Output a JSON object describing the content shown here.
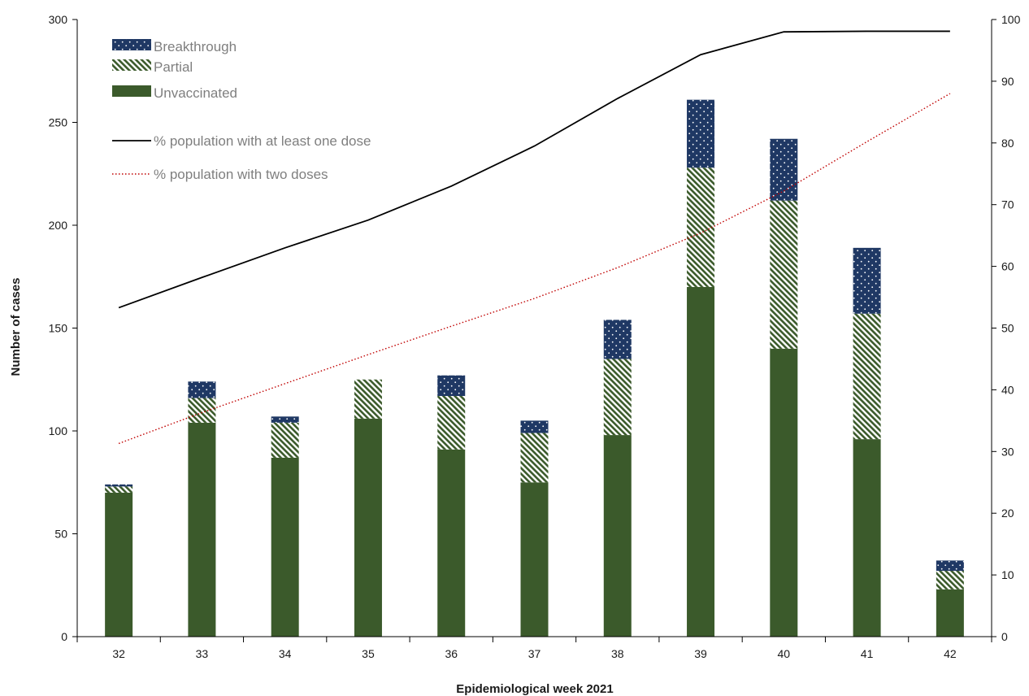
{
  "chart_data": {
    "type": "bar",
    "stacked": true,
    "categories": [
      "32",
      "33",
      "34",
      "35",
      "36",
      "37",
      "38",
      "39",
      "40",
      "41",
      "42"
    ],
    "series": [
      {
        "name": "Unvaccinated",
        "kind": "bar",
        "axis": "left",
        "color": "#3b5a2b",
        "pattern": "solid",
        "values": [
          70,
          104,
          87,
          106,
          91,
          75,
          98,
          170,
          140,
          96,
          23
        ]
      },
      {
        "name": "Partial",
        "kind": "bar",
        "axis": "left",
        "color": "#3b5a2b",
        "pattern": "diagonal-stripes",
        "values": [
          3,
          12,
          17,
          19,
          26,
          24,
          37,
          58,
          72,
          61,
          9
        ]
      },
      {
        "name": "Breakthrough",
        "kind": "bar",
        "axis": "left",
        "color": "#1f3864",
        "pattern": "white-dots",
        "values": [
          1,
          8,
          3,
          0,
          10,
          6,
          19,
          33,
          30,
          32,
          5
        ]
      },
      {
        "name": "% population with at least one dose",
        "kind": "line",
        "axis": "right",
        "color": "#000000",
        "style": "solid",
        "values": [
          53.3,
          58.2,
          63.0,
          67.5,
          73.0,
          79.5,
          87.2,
          94.3,
          98.0,
          98.1,
          98.1
        ]
      },
      {
        "name": "% population with two doses",
        "kind": "line",
        "axis": "right",
        "color": "#c00000",
        "style": "dotted",
        "values": [
          31.3,
          36.3,
          41.0,
          45.7,
          50.3,
          54.8,
          59.8,
          65.4,
          72.2,
          80.2,
          88.0
        ]
      }
    ],
    "xlabel": "Epidemiological week 2021",
    "ylabel": "Number of cases",
    "y2label": "",
    "ylim": [
      0,
      300
    ],
    "y2lim": [
      0,
      100
    ],
    "yticks": [
      "0",
      "50",
      "100",
      "150",
      "200",
      "250",
      "300"
    ],
    "y2ticks": [
      "0",
      "10",
      "20",
      "30",
      "40",
      "50",
      "60",
      "70",
      "80",
      "90",
      "100"
    ],
    "legend": {
      "placement": "top-left",
      "entries": [
        "Breakthrough",
        "Partial",
        "Unvaccinated",
        "% population with at least one dose",
        "% population with two doses"
      ]
    },
    "grid": false
  }
}
